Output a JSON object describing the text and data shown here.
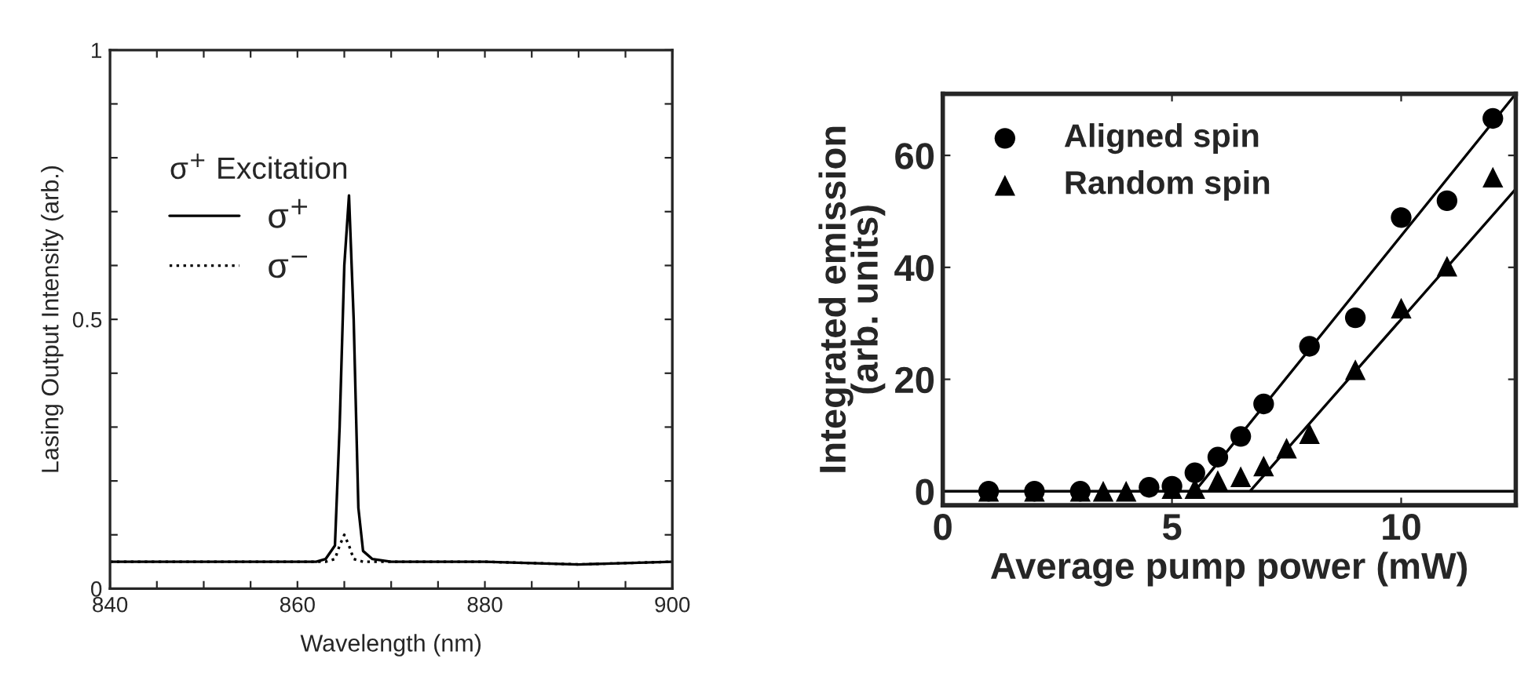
{
  "chart_data": [
    {
      "type": "line",
      "xlabel": "Wavelength (nm)",
      "ylabel": "Lasing Output Intensity (arb.)",
      "legend_title": "σ$^{+}$ Excitation",
      "legend": "top left",
      "xlim": [
        840,
        900
      ],
      "ylim": [
        0,
        1
      ],
      "xticks": [
        840,
        {
          "value": 845,
          "label": null
        },
        {
          "value": 850,
          "label": null
        },
        {
          "value": 855,
          "label": null
        },
        860,
        {
          "value": 865,
          "label": null
        },
        {
          "value": 870,
          "label": null
        },
        {
          "value": 875,
          "label": null
        },
        880,
        {
          "value": 885,
          "label": null
        },
        {
          "value": 890,
          "label": null
        },
        {
          "value": 895,
          "label": null
        },
        900
      ],
      "yticks": [
        0,
        {
          "value": 0.1,
          "label": null
        },
        {
          "value": 0.2,
          "label": null
        },
        {
          "value": 0.3,
          "label": null
        },
        {
          "value": 0.4,
          "label": null
        },
        0.5,
        {
          "value": 0.6,
          "label": null
        },
        {
          "value": 0.7,
          "label": null
        },
        {
          "value": 0.8,
          "label": null
        },
        {
          "value": 0.9,
          "label": null
        },
        1
      ],
      "series": [
        {
          "name": "σ$^{+}$",
          "color": "#000000",
          "line_style": "solid",
          "x": [
            840,
            850,
            860,
            862,
            863,
            864,
            864.5,
            865,
            865.5,
            866,
            866.5,
            867,
            868,
            870,
            880,
            890,
            900
          ],
          "values": [
            0.05,
            0.05,
            0.05,
            0.05,
            0.055,
            0.08,
            0.3,
            0.6,
            0.73,
            0.5,
            0.15,
            0.07,
            0.055,
            0.05,
            0.05,
            0.045,
            0.05
          ]
        },
        {
          "name": "σ$^{−}$",
          "color": "#000000",
          "line_style": "dotted",
          "x": [
            840,
            850,
            860,
            863,
            864,
            864.5,
            865,
            865.5,
            866,
            867,
            870,
            880,
            890,
            900
          ],
          "values": [
            0.05,
            0.05,
            0.05,
            0.05,
            0.055,
            0.08,
            0.1,
            0.08,
            0.055,
            0.05,
            0.05,
            0.05,
            0.045,
            0.05
          ]
        }
      ]
    },
    {
      "type": "scatter",
      "xlabel": "Average pump power (mW)",
      "ylabel": "Integrated emission\n(arb. units)",
      "legend": "top left",
      "xlim": [
        0,
        12.5
      ],
      "ylim": [
        -2.5,
        71
      ],
      "xticks": [
        0,
        5,
        10
      ],
      "yticks": [
        0,
        20,
        40,
        60
      ],
      "ref_lines": [
        {
          "axis": "y",
          "value": 0,
          "color": "#000000"
        }
      ],
      "series": [
        {
          "name": "Aligned spin",
          "color": "#000000",
          "marker": "circle",
          "x": [
            1,
            2,
            3,
            3.5,
            4,
            4.5,
            5,
            5.5,
            6,
            6.5,
            7,
            8,
            9,
            10,
            11,
            12
          ],
          "values": [
            0,
            0,
            0,
            null,
            null,
            0.7,
            0.9,
            3.3,
            6.1,
            9.8,
            15.6,
            25.9,
            31,
            48.9,
            51.9,
            66.6
          ]
        },
        {
          "name": "Random spin",
          "color": "#000000",
          "marker": "triangle",
          "x": [
            1,
            2,
            3,
            3.5,
            4,
            4.5,
            5,
            5.5,
            6,
            6.5,
            7,
            7.5,
            8,
            9,
            10,
            11,
            12
          ],
          "values": [
            0,
            0,
            0,
            0,
            0,
            null,
            0.5,
            0.5,
            1.9,
            2.6,
            4.5,
            7.7,
            10.3,
            21.7,
            32.7,
            40.2,
            56.1
          ]
        },
        {
          "type": "line",
          "color": "#000000",
          "line_style": "solid",
          "marker": "none",
          "x": [
            5.5,
            12.5
          ],
          "values": [
            0,
            71
          ]
        },
        {
          "type": "line",
          "color": "#000000",
          "line_style": "solid",
          "marker": "none",
          "x": [
            6.7,
            12.5
          ],
          "values": [
            0,
            54
          ]
        }
      ]
    }
  ]
}
